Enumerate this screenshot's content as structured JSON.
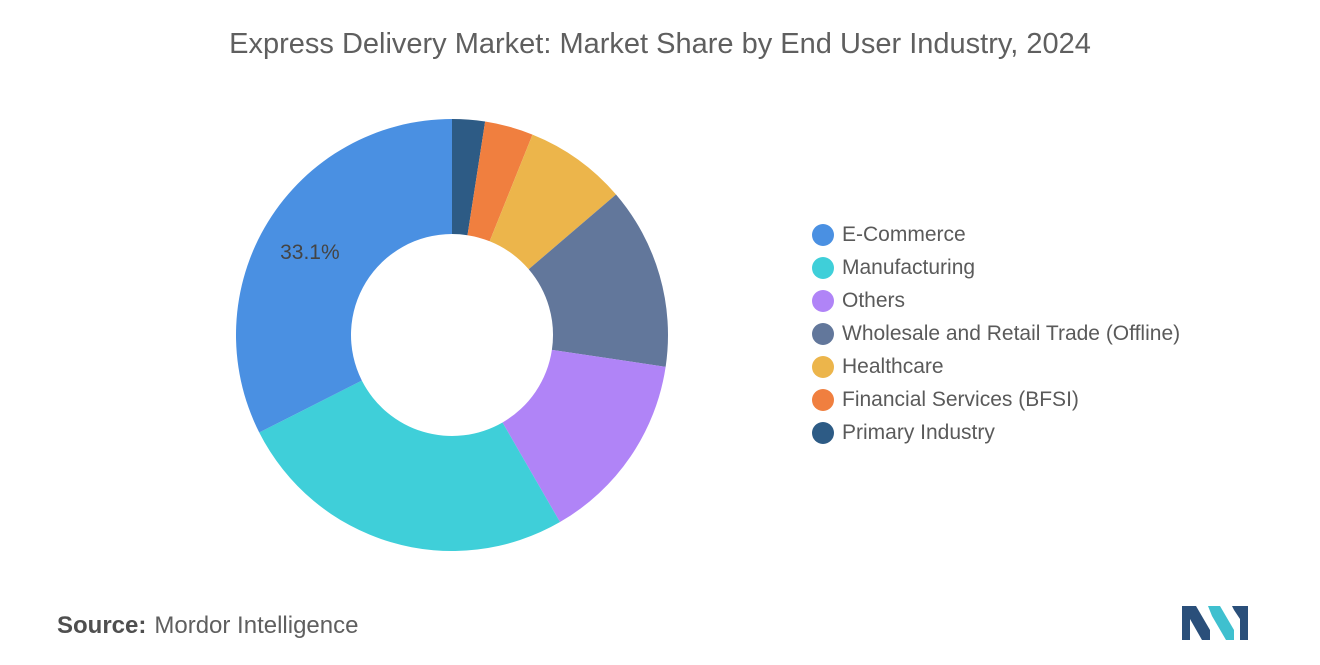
{
  "chart_data": {
    "type": "pie",
    "donut": true,
    "title": "Express Delivery Market: Market Share by End User Industry, 2024",
    "labels": [
      "E-Commerce",
      "Manufacturing",
      "Others",
      "Wholesale and Retail Trade (Offline)",
      "Healthcare",
      "Financial Services (BFSI)",
      "Primary Industry"
    ],
    "values": [
      33.1,
      26.4,
      14.6,
      13.9,
      7.8,
      3.7,
      2.5
    ],
    "colors": [
      "#4a90e2",
      "#3fcfd9",
      "#b084f7",
      "#62779b",
      "#ecb54b",
      "#f07f3f",
      "#2d5b85"
    ],
    "draw_order": [
      6,
      5,
      4,
      3,
      2,
      1,
      0
    ],
    "data_labels": [
      {
        "index": 0,
        "text": "33.1%"
      }
    ],
    "legend_position": "right"
  },
  "source": {
    "label": "Source:",
    "value": "Mordor Intelligence"
  },
  "logo": {
    "icon": "mordor-intelligence-logo",
    "colors": [
      "#2a4f7a",
      "#3fc0cf"
    ]
  }
}
